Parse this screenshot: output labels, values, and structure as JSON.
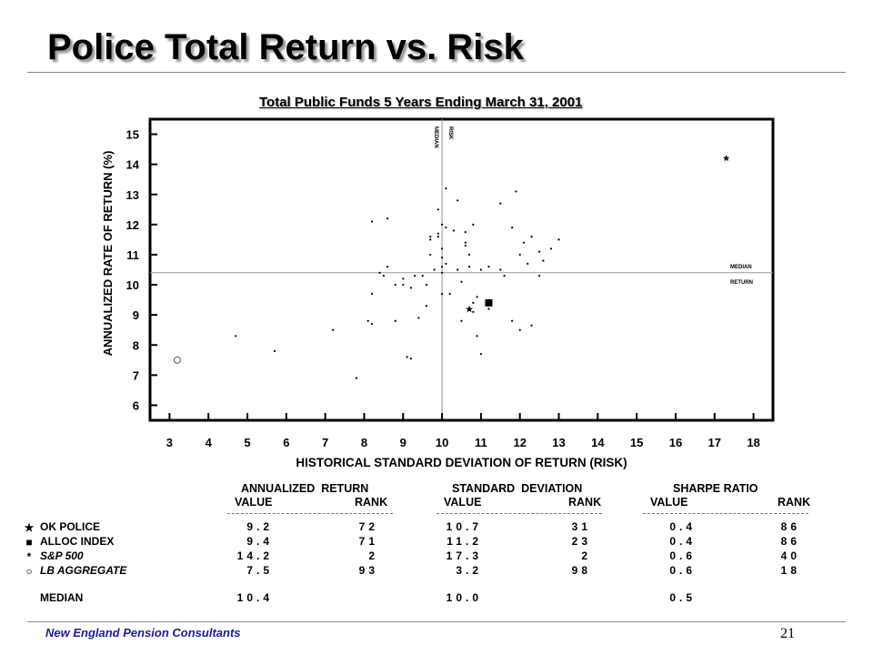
{
  "page": {
    "title": "Police Total Return vs. Risk",
    "footer_org": "New England Pension Consultants",
    "page_number": "21"
  },
  "chart_data": {
    "type": "scatter",
    "title": "Total Public Funds 5 Years Ending March 31, 2001",
    "xlabel": "HISTORICAL STANDARD DEVIATION OF RETURN (RISK)",
    "ylabel": "ANNUALIZED RATE OF RETURN (%)",
    "xlim": [
      2.5,
      18.5
    ],
    "ylim": [
      5.5,
      15.5
    ],
    "xticks": [
      3,
      4,
      5,
      6,
      7,
      8,
      9,
      10,
      11,
      12,
      13,
      14,
      15,
      16,
      17,
      18
    ],
    "yticks": [
      6,
      7,
      8,
      9,
      10,
      11,
      12,
      13,
      14,
      15
    ],
    "median_risk": 10.0,
    "median_return": 10.4,
    "median_risk_label": [
      "MEDIAN",
      "RISK"
    ],
    "median_return_label": [
      "MEDIAN",
      "RETURN"
    ],
    "universe_points": [
      [
        4.7,
        8.3
      ],
      [
        5.7,
        7.8
      ],
      [
        7.2,
        8.5
      ],
      [
        7.8,
        6.9
      ],
      [
        8.1,
        8.8
      ],
      [
        8.2,
        8.7
      ],
      [
        8.2,
        9.7
      ],
      [
        8.2,
        12.1
      ],
      [
        8.4,
        10.4
      ],
      [
        8.5,
        10.3
      ],
      [
        8.6,
        10.6
      ],
      [
        8.6,
        12.2
      ],
      [
        8.8,
        10.0
      ],
      [
        8.8,
        8.8
      ],
      [
        9.0,
        10.2
      ],
      [
        9.0,
        10.0
      ],
      [
        9.1,
        7.6
      ],
      [
        9.2,
        7.55
      ],
      [
        9.2,
        9.9
      ],
      [
        9.3,
        10.3
      ],
      [
        9.4,
        8.9
      ],
      [
        9.5,
        10.3
      ],
      [
        9.6,
        9.3
      ],
      [
        9.6,
        10.0
      ],
      [
        9.7,
        11.6
      ],
      [
        9.7,
        11.5
      ],
      [
        9.7,
        11.0
      ],
      [
        9.8,
        10.5
      ],
      [
        9.9,
        12.5
      ],
      [
        9.9,
        11.7
      ],
      [
        9.9,
        11.6
      ],
      [
        10.0,
        12.0
      ],
      [
        10.0,
        11.2
      ],
      [
        10.0,
        10.9
      ],
      [
        10.0,
        10.6
      ],
      [
        10.0,
        10.4
      ],
      [
        10.0,
        9.7
      ],
      [
        10.1,
        13.2
      ],
      [
        10.1,
        11.9
      ],
      [
        10.1,
        10.7
      ],
      [
        10.2,
        9.7
      ],
      [
        10.3,
        11.8
      ],
      [
        10.4,
        12.8
      ],
      [
        10.4,
        10.5
      ],
      [
        10.5,
        10.1
      ],
      [
        10.5,
        8.8
      ],
      [
        10.6,
        11.4
      ],
      [
        10.6,
        11.3
      ],
      [
        10.6,
        11.75
      ],
      [
        10.7,
        10.6
      ],
      [
        10.7,
        11.0
      ],
      [
        10.8,
        12.0
      ],
      [
        10.8,
        9.4
      ],
      [
        10.8,
        9.1
      ],
      [
        10.9,
        8.3
      ],
      [
        10.9,
        9.6
      ],
      [
        11.0,
        10.5
      ],
      [
        11.0,
        7.7
      ],
      [
        11.2,
        10.6
      ],
      [
        11.2,
        9.2
      ],
      [
        11.5,
        12.7
      ],
      [
        11.5,
        10.5
      ],
      [
        11.6,
        10.3
      ],
      [
        11.8,
        11.9
      ],
      [
        11.8,
        8.8
      ],
      [
        11.9,
        13.1
      ],
      [
        12.0,
        11.0
      ],
      [
        12.0,
        8.5
      ],
      [
        12.1,
        11.4
      ],
      [
        12.2,
        10.7
      ],
      [
        12.3,
        11.6
      ],
      [
        12.3,
        8.65
      ],
      [
        12.5,
        10.3
      ],
      [
        12.5,
        11.1
      ],
      [
        12.6,
        10.8
      ],
      [
        12.8,
        11.2
      ],
      [
        13.0,
        11.5
      ]
    ],
    "highlighted": [
      {
        "name": "OK POLICE",
        "risk": 10.7,
        "return": 9.2,
        "symbol": "★",
        "shape": "star"
      },
      {
        "name": "ALLOC INDEX",
        "risk": 11.2,
        "return": 9.4,
        "symbol": "■",
        "shape": "square"
      },
      {
        "name": "S&P 500",
        "risk": 17.3,
        "return": 14.2,
        "symbol": "*",
        "shape": "asterisk"
      },
      {
        "name": "LB AGGREGATE",
        "risk": 3.2,
        "return": 7.5,
        "symbol": "○",
        "shape": "circle"
      }
    ]
  },
  "table": {
    "group_headers": [
      "ANNUALIZED  RETURN",
      "STANDARD  DEVIATION",
      "SHARPE RATIO"
    ],
    "col_value": "VALUE",
    "col_rank": "RANK",
    "rows": [
      {
        "symbol": "★",
        "label": "OK POLICE",
        "italic": false,
        "ret": "9.2",
        "ret_rank": "72",
        "sd": "10.7",
        "sd_rank": "31",
        "sharpe": "0.4",
        "sharpe_rank": "86"
      },
      {
        "symbol": "■",
        "label": "ALLOC INDEX",
        "italic": false,
        "ret": "9.4",
        "ret_rank": "71",
        "sd": "11.2",
        "sd_rank": "23",
        "sharpe": "0.4",
        "sharpe_rank": "86"
      },
      {
        "symbol": "*",
        "label": "S&P 500",
        "italic": true,
        "ret": "14.2",
        "ret_rank": "2",
        "sd": "17.3",
        "sd_rank": "2",
        "sharpe": "0.6",
        "sharpe_rank": "40"
      },
      {
        "symbol": "○",
        "label": "LB AGGREGATE",
        "italic": true,
        "ret": "7.5",
        "ret_rank": "93",
        "sd": "3.2",
        "sd_rank": "98",
        "sharpe": "0.6",
        "sharpe_rank": "18"
      }
    ],
    "median": {
      "label": "MEDIAN",
      "ret": "10.4",
      "sd": "10.0",
      "sharpe": "0.5"
    }
  }
}
